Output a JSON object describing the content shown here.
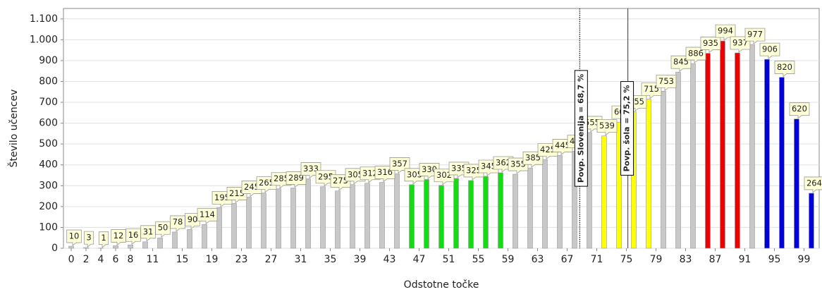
{
  "chart_data": {
    "type": "bar",
    "y_label": "Število učencev",
    "x_label": "Odstotne točke",
    "x": [
      0,
      2,
      4,
      6,
      8,
      10,
      12,
      14,
      16,
      18,
      20,
      22,
      24,
      26,
      28,
      30,
      32,
      34,
      36,
      38,
      40,
      42,
      44,
      46,
      48,
      50,
      52,
      54,
      56,
      58,
      60,
      62,
      64,
      66,
      68,
      70,
      72,
      74,
      76,
      78,
      80,
      82,
      84,
      86,
      88,
      90,
      92,
      94,
      96,
      98,
      100
    ],
    "values": [
      10,
      3,
      1,
      12,
      16,
      31,
      50,
      78,
      90,
      114,
      195,
      215,
      245,
      265,
      285,
      289,
      333,
      295,
      275,
      305,
      312,
      316,
      357,
      305,
      330,
      302,
      335,
      325,
      345,
      362,
      355,
      385,
      425,
      445,
      465,
      555,
      539,
      605,
      655,
      715,
      753,
      845,
      886,
      935,
      994,
      937,
      977,
      906,
      820,
      620,
      264
    ],
    "colors": [
      "#c8c8c8",
      "#c8c8c8",
      "#c8c8c8",
      "#c8c8c8",
      "#c8c8c8",
      "#c8c8c8",
      "#c8c8c8",
      "#c8c8c8",
      "#c8c8c8",
      "#c8c8c8",
      "#c8c8c8",
      "#c8c8c8",
      "#c8c8c8",
      "#c8c8c8",
      "#c8c8c8",
      "#c8c8c8",
      "#c8c8c8",
      "#c8c8c8",
      "#c8c8c8",
      "#c8c8c8",
      "#c8c8c8",
      "#c8c8c8",
      "#c8c8c8",
      "#11dd11",
      "#11dd11",
      "#11dd11",
      "#11dd11",
      "#11dd11",
      "#11dd11",
      "#11dd11",
      "#c8c8c8",
      "#c8c8c8",
      "#c8c8c8",
      "#c8c8c8",
      "#c8c8c8",
      "#c8c8c8",
      "#ffff00",
      "#ffff00",
      "#ffff00",
      "#ffff00",
      "#c8c8c8",
      "#c8c8c8",
      "#c8c8c8",
      "#ee0000",
      "#ee0000",
      "#ee0000",
      "#c8c8c8",
      "#0000dd",
      "#0000dd",
      "#0000dd",
      "#0000dd"
    ],
    "xlim": [
      -1.05,
      101.05
    ],
    "xticks": [
      0,
      2,
      4,
      6,
      8,
      11,
      15,
      19,
      23,
      27,
      31,
      35,
      39,
      43,
      47,
      51,
      55,
      59,
      63,
      67,
      71,
      75,
      79,
      83,
      87,
      91,
      95,
      99
    ],
    "ylim": [
      0,
      1150
    ],
    "yticks": [
      0,
      100,
      200,
      300,
      400,
      500,
      600,
      700,
      800,
      900,
      {
        "value": 1000,
        "label": "1.000"
      },
      {
        "value": 1100,
        "label": "1.100"
      }
    ],
    "grid": true,
    "annotations": [
      {
        "x": 68.7,
        "text": "Povp. Slovenija = 68,7 %",
        "style": "dotted"
      },
      {
        "x": 75.2,
        "text": "Povp. šola = 75,2 %",
        "style": "solid"
      }
    ]
  }
}
